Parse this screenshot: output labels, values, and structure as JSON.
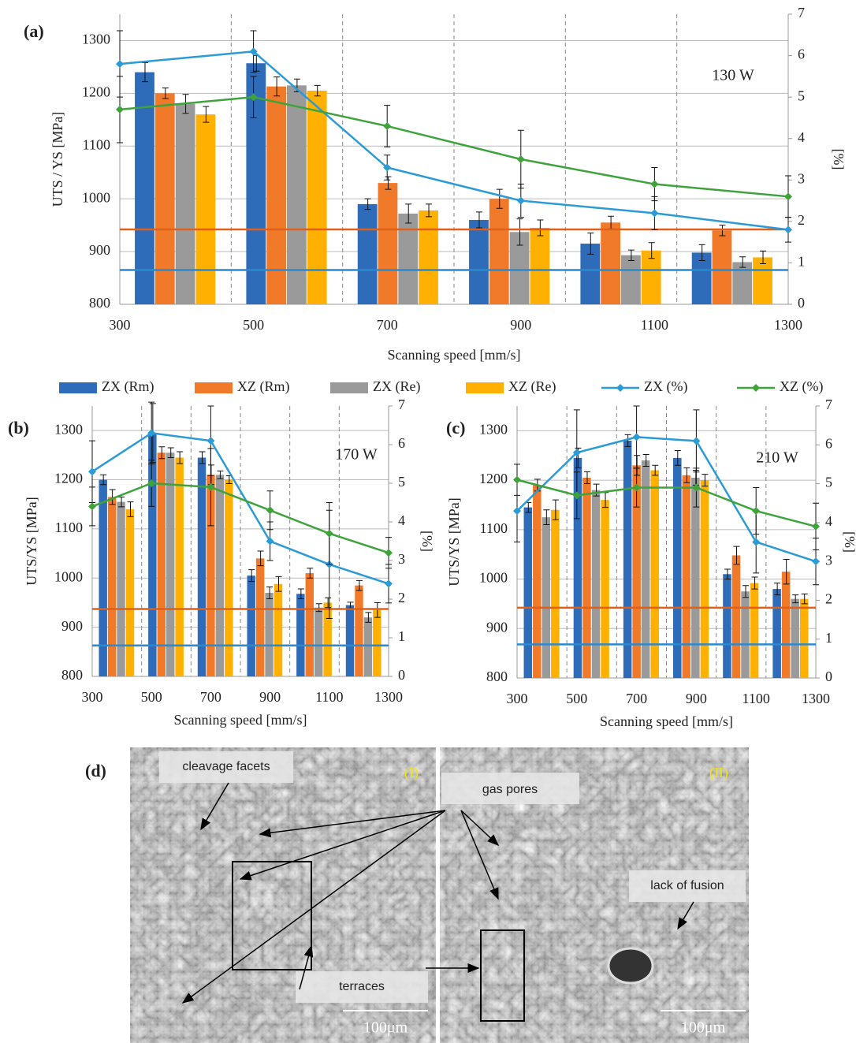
{
  "chart_data": [
    {
      "type": "bar",
      "panel_label": "(a)",
      "annotation": "130 W",
      "ylabel": "UTS / YS [MPa]",
      "y2label": "[%]",
      "xlabel": "Scanning speed [mm/s]",
      "x": [
        300,
        500,
        700,
        900,
        1100,
        1300
      ],
      "xlim": [
        300,
        1300
      ],
      "xticks": [
        300,
        500,
        700,
        900,
        1100,
        1300
      ],
      "ylim": [
        800,
        1350
      ],
      "yticks": [
        800,
        900,
        1000,
        1100,
        1200,
        1300
      ],
      "y2lim": [
        0,
        7
      ],
      "y2ticks": [
        0,
        1,
        2,
        3,
        4,
        5,
        6,
        7
      ],
      "grid": true,
      "legend": true,
      "series": [
        {
          "name": "ZX (Rm)",
          "color": "#2e6bb8",
          "values": [
            1240,
            1257,
            990,
            960,
            915,
            898
          ],
          "errors": [
            18,
            15,
            10,
            15,
            20,
            15
          ]
        },
        {
          "name": "XZ (Rm)",
          "color": "#f07a2a",
          "values": [
            1200,
            1213,
            1030,
            1000,
            955,
            940
          ],
          "errors": [
            10,
            18,
            12,
            18,
            12,
            10
          ]
        },
        {
          "name": "ZX (Re)",
          "color": "#9a9a9a",
          "values": [
            1180,
            1215,
            972,
            937,
            893,
            880
          ],
          "errors": [
            18,
            12,
            18,
            25,
            10,
            10
          ]
        },
        {
          "name": "XZ (Re)",
          "color": "#ffb000",
          "values": [
            1160,
            1205,
            978,
            945,
            902,
            889
          ],
          "errors": [
            15,
            10,
            12,
            15,
            15,
            12
          ]
        },
        {
          "name": "ZX (%)",
          "color": "#2a9bd6",
          "type": "line",
          "axis": "y2",
          "values": [
            5.8,
            6.1,
            3.3,
            2.5,
            2.2,
            1.8
          ],
          "errors": [
            0.8,
            0.5,
            0.3,
            0.4,
            0.4,
            0.3
          ]
        },
        {
          "name": "XZ (%)",
          "color": "#3ea33b",
          "type": "line",
          "axis": "y2",
          "values": [
            4.7,
            5.0,
            4.3,
            3.5,
            2.9,
            2.6
          ],
          "errors": [
            0.8,
            0.5,
            0.5,
            0.7,
            0.4,
            0.5
          ]
        }
      ],
      "reference_lines": [
        {
          "value": 942,
          "color": "#e0601a"
        },
        {
          "value": 865,
          "color": "#2a8ad0"
        }
      ]
    },
    {
      "type": "bar",
      "panel_label": "(b)",
      "annotation": "170 W",
      "ylabel": "UTS/YS [MPa]",
      "y2label": "[%]",
      "xlabel": "Scanning speed [mm/s]",
      "x": [
        300,
        500,
        700,
        900,
        1100,
        1300
      ],
      "xlim": [
        300,
        1300
      ],
      "xticks": [
        300,
        500,
        700,
        900,
        1100,
        1300
      ],
      "ylim": [
        800,
        1350
      ],
      "yticks": [
        800,
        900,
        1000,
        1100,
        1200,
        1300
      ],
      "y2lim": [
        0,
        7
      ],
      "y2ticks": [
        0,
        1,
        2,
        3,
        4,
        5,
        6,
        7
      ],
      "grid": true,
      "legend": false,
      "series": [
        {
          "name": "ZX (Rm)",
          "color": "#2e6bb8",
          "values": [
            1200,
            1295,
            1245,
            1005,
            968,
            945
          ],
          "errors": [
            10,
            60,
            12,
            12,
            10,
            6
          ]
        },
        {
          "name": "XZ (Rm)",
          "color": "#f07a2a",
          "values": [
            1165,
            1255,
            1210,
            1040,
            1010,
            985
          ],
          "errors": [
            15,
            12,
            20,
            15,
            10,
            10
          ]
        },
        {
          "name": "ZX (Re)",
          "color": "#9a9a9a",
          "values": [
            1155,
            1255,
            1210,
            970,
            940,
            920
          ],
          "errors": [
            10,
            10,
            8,
            12,
            8,
            10
          ]
        },
        {
          "name": "XZ (Re)",
          "color": "#ffb000",
          "values": [
            1140,
            1245,
            1200,
            988,
            950,
            935
          ],
          "errors": [
            15,
            12,
            8,
            15,
            10,
            15
          ]
        },
        {
          "name": "ZX (%)",
          "color": "#2a9bd6",
          "type": "line",
          "axis": "y2",
          "values": [
            5.3,
            6.3,
            6.1,
            3.5,
            2.9,
            2.4
          ],
          "errors": [
            0.8,
            0.8,
            0.9,
            0.5,
            1.4,
            0.5
          ]
        },
        {
          "name": "XZ (%)",
          "color": "#3ea33b",
          "type": "line",
          "axis": "y2",
          "values": [
            4.4,
            5.0,
            4.9,
            4.3,
            3.7,
            3.2
          ],
          "errors": [
            0.5,
            0.6,
            1.0,
            0.5,
            0.8,
            0.4
          ]
        }
      ],
      "reference_lines": [
        {
          "value": 937,
          "color": "#e0601a"
        },
        {
          "value": 863,
          "color": "#2a8ad0"
        }
      ]
    },
    {
      "type": "bar",
      "panel_label": "(c)",
      "annotation": "210 W",
      "ylabel": "UTS/YS [MPa]",
      "y2label": "[%]",
      "xlabel": "Scanning speed [mm/s]",
      "x": [
        300,
        500,
        700,
        900,
        1100,
        1300
      ],
      "xlim": [
        300,
        1300
      ],
      "xticks": [
        300,
        500,
        700,
        900,
        1100,
        1300
      ],
      "ylim": [
        800,
        1350
      ],
      "yticks": [
        800,
        900,
        1000,
        1100,
        1200,
        1300
      ],
      "y2lim": [
        0,
        7
      ],
      "y2ticks": [
        0,
        1,
        2,
        3,
        4,
        5,
        6,
        7
      ],
      "grid": true,
      "legend": false,
      "series": [
        {
          "name": "ZX (Rm)",
          "color": "#2e6bb8",
          "values": [
            1145,
            1245,
            1280,
            1245,
            1010,
            980
          ],
          "errors": [
            10,
            20,
            12,
            15,
            10,
            12
          ]
        },
        {
          "name": "XZ (Rm)",
          "color": "#f07a2a",
          "values": [
            1190,
            1205,
            1230,
            1210,
            1048,
            1015
          ],
          "errors": [
            12,
            12,
            20,
            15,
            18,
            25
          ]
        },
        {
          "name": "ZX (Re)",
          "color": "#9a9a9a",
          "values": [
            1125,
            1180,
            1240,
            1205,
            975,
            960
          ],
          "errors": [
            15,
            12,
            12,
            15,
            12,
            8
          ]
        },
        {
          "name": "XZ (Re)",
          "color": "#ffb000",
          "values": [
            1140,
            1160,
            1220,
            1200,
            992,
            960
          ],
          "errors": [
            20,
            15,
            10,
            12,
            12,
            10
          ]
        },
        {
          "name": "ZX (%)",
          "color": "#2a9bd6",
          "type": "line",
          "axis": "y2",
          "values": [
            4.3,
            5.8,
            6.2,
            6.1,
            3.5,
            3.0
          ],
          "errors": [
            0.8,
            1.1,
            0.8,
            0.8,
            0.8,
            0.6
          ]
        },
        {
          "name": "XZ (%)",
          "color": "#3ea33b",
          "type": "line",
          "axis": "y2",
          "values": [
            5.1,
            4.7,
            4.9,
            4.9,
            4.3,
            3.9
          ],
          "errors": [
            0.4,
            0.6,
            0.5,
            0.5,
            0.6,
            0.6
          ]
        }
      ],
      "reference_lines": [
        {
          "value": 942,
          "color": "#e0601a"
        },
        {
          "value": 868,
          "color": "#2a8ad0"
        }
      ]
    }
  ],
  "panel_d": {
    "panel_label": "(d)",
    "left_label": "(I)",
    "right_label": "(II)",
    "annotations": [
      "cleavage facets",
      "gas pores",
      "terraces",
      "lack of fusion"
    ],
    "scale_bars": [
      "100μm",
      "100μm"
    ]
  }
}
